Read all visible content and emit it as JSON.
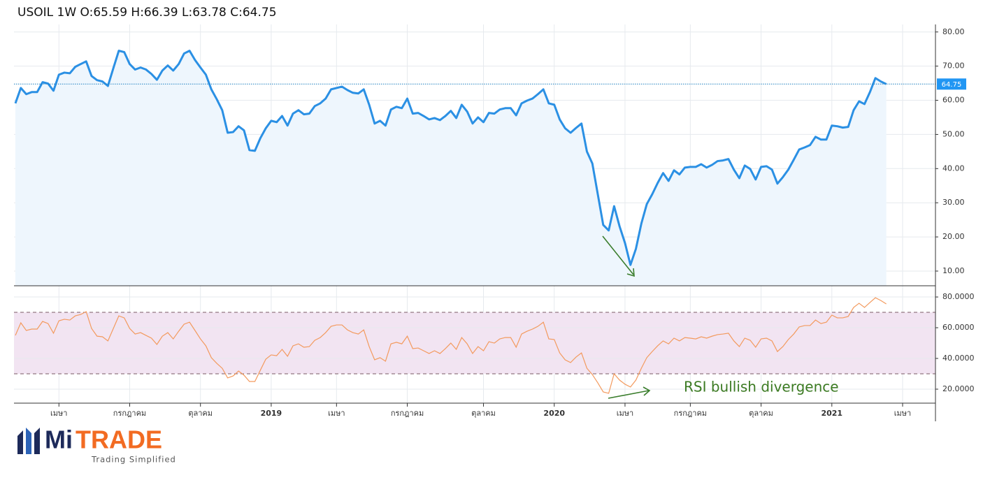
{
  "chart_data": [
    {
      "type": "area",
      "title": "USOIL 1W O:65.59 H:66.39 L:63.78 C:64.75",
      "color": "#2b90e4",
      "fill": "#eef6fd",
      "last_value": 64.75,
      "grid": true,
      "ylim": [
        5.7,
        82.2
      ],
      "yticks": [
        {
          "value": 10,
          "label": "10.00"
        },
        {
          "value": 20,
          "label": "20.00"
        },
        {
          "value": 30,
          "label": "30.00"
        },
        {
          "value": 40,
          "label": "40.00"
        },
        {
          "value": 50,
          "label": "50.00"
        },
        {
          "value": 60,
          "label": "60.00"
        },
        {
          "value": 70,
          "label": "70.00"
        },
        {
          "value": 80,
          "label": "80.00"
        }
      ],
      "values": [
        59.1,
        63.6,
        61.8,
        62.4,
        62.4,
        65.3,
        64.9,
        62.8,
        67.5,
        68.1,
        67.9,
        69.8,
        70.6,
        71.4,
        67.1,
        65.9,
        65.5,
        64.2,
        69.4,
        74.5,
        74.1,
        70.6,
        69.0,
        69.6,
        69.0,
        67.7,
        66.0,
        68.7,
        70.2,
        68.7,
        70.6,
        73.7,
        74.5,
        71.8,
        69.6,
        67.5,
        63.2,
        60.3,
        57.1,
        50.5,
        50.7,
        52.4,
        51.2,
        45.4,
        45.2,
        48.9,
        51.8,
        54.0,
        53.6,
        55.4,
        52.6,
        56.1,
        57.1,
        55.9,
        56.1,
        58.3,
        59.1,
        60.5,
        63.2,
        63.6,
        64.0,
        63.0,
        62.2,
        62.0,
        63.2,
        58.7,
        53.2,
        54.0,
        52.6,
        57.3,
        58.1,
        57.7,
        60.5,
        56.1,
        56.3,
        55.4,
        54.4,
        54.8,
        54.2,
        55.4,
        56.9,
        54.8,
        58.7,
        56.7,
        53.2,
        55.0,
        53.6,
        56.3,
        56.1,
        57.3,
        57.7,
        57.7,
        55.6,
        59.1,
        59.9,
        60.5,
        61.8,
        63.2,
        59.1,
        58.7,
        54.4,
        51.8,
        50.5,
        51.9,
        53.2,
        45.0,
        41.5,
        32.5,
        23.5,
        21.9,
        29.0,
        23.1,
        18.2,
        11.8,
        16.5,
        23.9,
        29.6,
        32.5,
        35.8,
        38.7,
        36.4,
        39.5,
        38.3,
        40.3,
        40.5,
        40.5,
        41.3,
        40.3,
        41.1,
        42.2,
        42.4,
        42.8,
        39.7,
        37.2,
        40.9,
        39.9,
        36.8,
        40.5,
        40.7,
        39.7,
        35.6,
        37.5,
        39.7,
        42.6,
        45.6,
        46.2,
        46.9,
        49.3,
        48.5,
        48.5,
        52.6,
        52.4,
        52.0,
        52.2,
        57.1,
        59.7,
        58.9,
        62.4,
        66.5,
        65.5,
        64.75,
        null,
        null,
        null
      ]
    },
    {
      "type": "line",
      "color": "#f39a5e",
      "band_color": "#f2e4f2",
      "bands": [
        30,
        70
      ],
      "annotation": "RSI bullish divergence",
      "grid": true,
      "ylim": [
        10.9,
        87.3
      ],
      "yticks": [
        {
          "value": 20,
          "label": "20.0000"
        },
        {
          "value": 40,
          "label": "40.0000"
        },
        {
          "value": 60,
          "label": "60.0000"
        },
        {
          "value": 80,
          "label": "80.0000"
        }
      ],
      "categories": [
        null,
        null,
        null,
        null,
        null,
        null,
        null,
        null,
        "เมษา",
        null,
        null,
        null,
        null,
        null,
        null,
        null,
        null,
        null,
        null,
        null,
        null,
        "กรกฎาคม",
        null,
        null,
        null,
        null,
        null,
        null,
        null,
        null,
        null,
        null,
        null,
        null,
        "ตุลาคม",
        null,
        null,
        null,
        null,
        null,
        null,
        null,
        null,
        null,
        null,
        null,
        null,
        "2019",
        null,
        null,
        null,
        null,
        null,
        null,
        null,
        null,
        null,
        null,
        null,
        "เมษา",
        null,
        null,
        null,
        null,
        null,
        null,
        null,
        null,
        null,
        null,
        null,
        null,
        "กรกฎาคม",
        null,
        null,
        null,
        null,
        null,
        null,
        null,
        null,
        null,
        null,
        null,
        null,
        null,
        "ตุลาคม",
        null,
        null,
        null,
        null,
        null,
        null,
        null,
        null,
        null,
        null,
        null,
        null,
        "2020",
        null,
        null,
        null,
        null,
        null,
        null,
        null,
        null,
        null,
        null,
        null,
        null,
        "เมษา",
        null,
        null,
        null,
        null,
        null,
        null,
        null,
        null,
        null,
        null,
        null,
        "กรกฎาคม",
        null,
        null,
        null,
        null,
        null,
        null,
        null,
        null,
        null,
        null,
        null,
        null,
        "ตุลาคม",
        null,
        null,
        null,
        null,
        null,
        null,
        null,
        null,
        null,
        null,
        null,
        null,
        "2021",
        null,
        null,
        null,
        null,
        null,
        null,
        null,
        null,
        null,
        null,
        null,
        null,
        "เมษา"
      ],
      "values": [
        55.0,
        63.2,
        58.2,
        59.1,
        59.1,
        64.1,
        62.7,
        56.4,
        64.5,
        65.5,
        65.0,
        67.7,
        68.6,
        70.5,
        59.5,
        54.5,
        54.1,
        51.4,
        59.5,
        67.7,
        66.4,
        59.5,
        55.9,
        56.8,
        55.0,
        53.2,
        49.1,
        54.5,
        56.8,
        52.7,
        57.7,
        62.3,
        63.6,
        58.2,
        52.7,
        48.2,
        40.5,
        36.8,
        33.6,
        27.3,
        28.6,
        31.8,
        29.1,
        25.0,
        25.0,
        32.3,
        39.5,
        42.3,
        41.8,
        45.9,
        41.4,
        48.2,
        49.5,
        47.3,
        47.7,
        51.8,
        53.6,
        56.8,
        60.9,
        61.8,
        61.8,
        58.6,
        56.8,
        55.9,
        58.6,
        47.7,
        39.1,
        40.5,
        38.2,
        49.5,
        50.5,
        49.5,
        54.5,
        46.4,
        46.8,
        45.0,
        43.2,
        45.0,
        43.2,
        46.4,
        50.0,
        45.9,
        53.6,
        49.5,
        43.2,
        47.7,
        45.0,
        50.9,
        50.0,
        52.7,
        53.6,
        53.6,
        47.3,
        55.9,
        57.7,
        59.1,
        60.9,
        63.6,
        52.7,
        52.3,
        43.6,
        39.1,
        37.3,
        40.9,
        43.6,
        33.6,
        29.5,
        24.1,
        18.2,
        17.3,
        30.0,
        25.9,
        23.2,
        21.4,
        25.9,
        33.6,
        40.5,
        44.5,
        48.2,
        51.4,
        49.5,
        53.2,
        51.4,
        53.6,
        53.2,
        52.7,
        54.1,
        53.2,
        54.5,
        55.5,
        55.9,
        56.4,
        51.4,
        47.7,
        53.2,
        51.8,
        47.3,
        52.7,
        53.2,
        51.4,
        44.5,
        47.7,
        52.3,
        55.9,
        60.5,
        61.4,
        61.4,
        65.0,
        62.7,
        63.6,
        68.2,
        66.4,
        66.4,
        67.3,
        73.2,
        75.9,
        73.2,
        76.4,
        79.5,
        77.7,
        75.5,
        null,
        null,
        null
      ]
    }
  ],
  "logo": {
    "brand_a": "Mi",
    "brand_b": "TRADE",
    "tagline": "Trading Simplified"
  }
}
